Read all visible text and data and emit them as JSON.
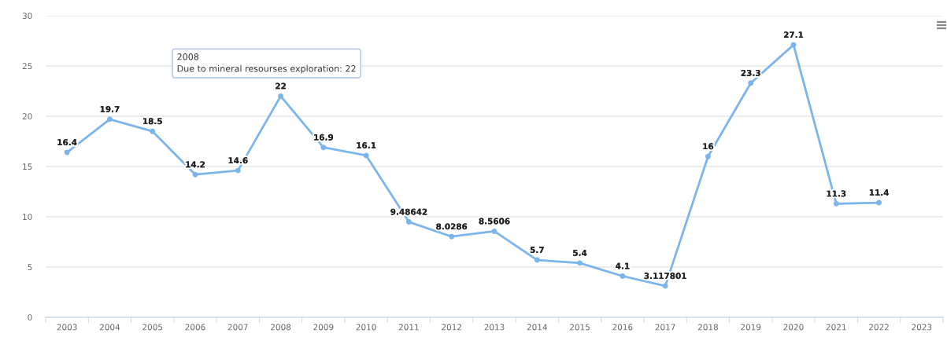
{
  "chart_data": {
    "type": "line",
    "categories": [
      "2003",
      "2004",
      "2005",
      "2006",
      "2007",
      "2008",
      "2009",
      "2010",
      "2011",
      "2012",
      "2013",
      "2014",
      "2015",
      "2016",
      "2017",
      "2018",
      "2019",
      "2020",
      "2021",
      "2022",
      "2023"
    ],
    "values": [
      16.4,
      19.7,
      18.5,
      14.2,
      14.6,
      22,
      16.9,
      16.1,
      9.48642,
      8.0286,
      8.5606,
      5.7,
      5.4,
      4.1,
      3.117801,
      16,
      23.3,
      27.1,
      11.3,
      11.4,
      null
    ],
    "color": "#7cb5ec",
    "ylim": [
      0,
      30
    ],
    "yticks": [
      0,
      5,
      10,
      15,
      20,
      25,
      30
    ],
    "grid": "y",
    "marker": "circle",
    "line_style": "solid",
    "data_labels": true,
    "annotations": [
      {
        "text": "2008\nDue to mineral resourses exploration: 22",
        "x": "2008",
        "y": 22
      }
    ]
  }
}
